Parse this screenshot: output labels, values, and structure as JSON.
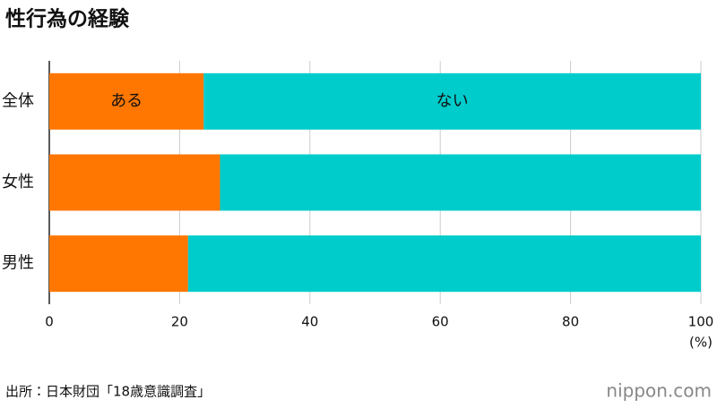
{
  "chart_data": {
    "type": "stacked_barh",
    "title": "性行為の経験",
    "categories": [
      "全体",
      "女性",
      "男性"
    ],
    "series": [
      {
        "name": "ある",
        "color": "#ff7700",
        "values": [
          23.7,
          26.2,
          21.3
        ]
      },
      {
        "name": "ない",
        "color": "#00cccc",
        "values": [
          76.3,
          73.8,
          78.7
        ]
      }
    ],
    "xlim": [
      0,
      100
    ],
    "xticks": [
      0,
      20,
      40,
      60,
      80,
      100
    ],
    "x_unit": "(%)",
    "grid": true,
    "source": "出所：日本財団「18歳意識調査」",
    "brand": "nippon.com"
  }
}
